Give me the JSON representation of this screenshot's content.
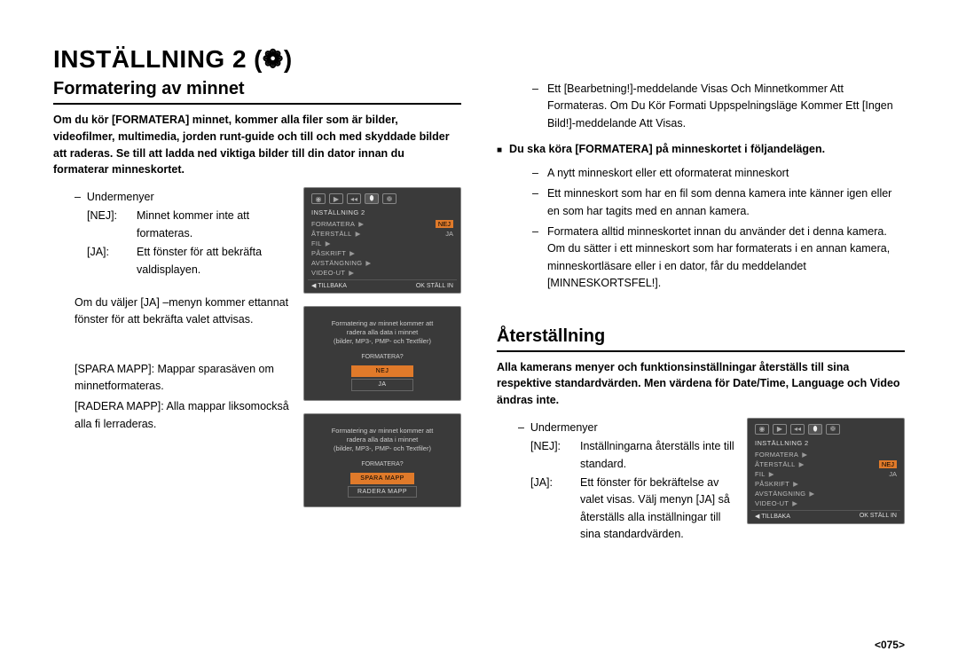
{
  "page_title": "INSTÄLLNING 2",
  "gear_glyph": "(❁)",
  "left": {
    "section_title": "Formatering av minnet",
    "intro_bold": "Om du kör [FORMATERA] minnet, kommer alla filer som är bilder, videofilmer, multimedia, jorden runt-guide och till och med skyddade bilder att raderas. Se till att ladda ned viktiga bilder till din dator innan du formaterar minneskortet.",
    "submenu_label": "Undermenyer",
    "kv": {
      "nej_key": "[NEJ]:",
      "nej_val": "Minnet kommer inte att formateras.",
      "ja_key": "[JA]:",
      "ja_val": "Ett fönster för att bekräfta valdisplayen."
    },
    "ja_followup": "Om du väljer [JA] –menyn kommer ettannat fönster för att bekräfta valet attvisas.",
    "spara": "[SPARA MAPP]: Mappar sparasäven om minnetformateras.",
    "radera": "[RADERA MAPP]: Alla mappar liksomockså alla fi lerraderas."
  },
  "right": {
    "cont_dash1": "Ett [Bearbetning!]-meddelande Visas Och Minnetkommer Att Formateras. Om Du Kör Formati Uppspelningsläge Kommer Ett [Ingen Bild!]-meddelande Att Visas.",
    "bullet": "Du ska köra [FORMATERA] på minneskortet i följandelägen.",
    "dashes": [
      "A nytt minneskort eller ett oformaterat minneskort",
      "Ett minneskort som har en fil som denna kamera inte känner igen eller en som har tagits med en annan kamera.",
      "Formatera alltid minneskortet innan du använder det i denna kamera. Om du sätter i ett minneskort som har formaterats i en annan kamera, minneskortläsare eller i en dator, får du meddelandet [MINNESKORTSFEL!]."
    ],
    "reset": {
      "section_title": "Återställning",
      "intro_bold": "Alla kamerans menyer och funktionsinställningar återställs till sina respektive standardvärden. Men värdena för Date/Time, Language och Video ändras inte.",
      "submenu_label": "Undermenyer",
      "kv": {
        "nej_key": "[NEJ]:",
        "nej_val": "Inställningarna återställs inte till standard.",
        "ja_key": "[JA]:",
        "ja_val": "Ett fönster för bekräftelse av valet visas. Välj menyn [JA] så återställs alla inställningar till sina standardvärden."
      }
    }
  },
  "shots": {
    "menu1": {
      "header": "INSTÄLLNING 2",
      "rows": [
        {
          "lab": "FORMATERA",
          "arr": "▶",
          "val": "NEJ",
          "hl": true
        },
        {
          "lab": "ÅTERSTÄLL",
          "arr": "▶",
          "val": "JA"
        },
        {
          "lab": "FIL",
          "arr": "▶",
          "val": ""
        },
        {
          "lab": "PÅSKRIFT",
          "arr": "▶",
          "val": ""
        },
        {
          "lab": "AVSTÄNGNING",
          "arr": "▶",
          "val": ""
        },
        {
          "lab": "VIDEO-UT",
          "arr": "▶",
          "val": ""
        }
      ],
      "foot_l": "◀ TILLBAKA",
      "foot_r": "OK STÄLL IN"
    },
    "confirm1": {
      "body_l1": "Formatering av minnet kommer att",
      "body_l2": "radera alla data i minnet",
      "body_l3": "(bilder, MP3-, PMP- och Textfiler)",
      "q": "FORMATERA?",
      "btns": [
        {
          "t": "NEJ",
          "hl": true
        },
        {
          "t": "JA",
          "hl": false
        }
      ]
    },
    "confirm2": {
      "body_l1": "Formatering av minnet kommer att",
      "body_l2": "radera alla data i minnet",
      "body_l3": "(bilder, MP3-, PMP- och Textfiler)",
      "q": "FORMATERA?",
      "btns": [
        {
          "t": "SPARA MAPP",
          "hl": true
        },
        {
          "t": "RADERA MAPP",
          "hl": false
        }
      ]
    },
    "menu2": {
      "header": "INSTÄLLNING 2",
      "rows": [
        {
          "lab": "FORMATERA",
          "arr": "▶",
          "val": ""
        },
        {
          "lab": "ÅTERSTÄLL",
          "arr": "▶",
          "val": "NEJ",
          "hl": true
        },
        {
          "lab": "FIL",
          "arr": "▶",
          "val": "JA"
        },
        {
          "lab": "PÅSKRIFT",
          "arr": "▶",
          "val": ""
        },
        {
          "lab": "AVSTÄNGNING",
          "arr": "▶",
          "val": ""
        },
        {
          "lab": "VIDEO-UT",
          "arr": "▶",
          "val": ""
        }
      ],
      "foot_l": "◀ TILLBAKA",
      "foot_r": "OK STÄLL IN"
    }
  },
  "page_num": "<075>"
}
